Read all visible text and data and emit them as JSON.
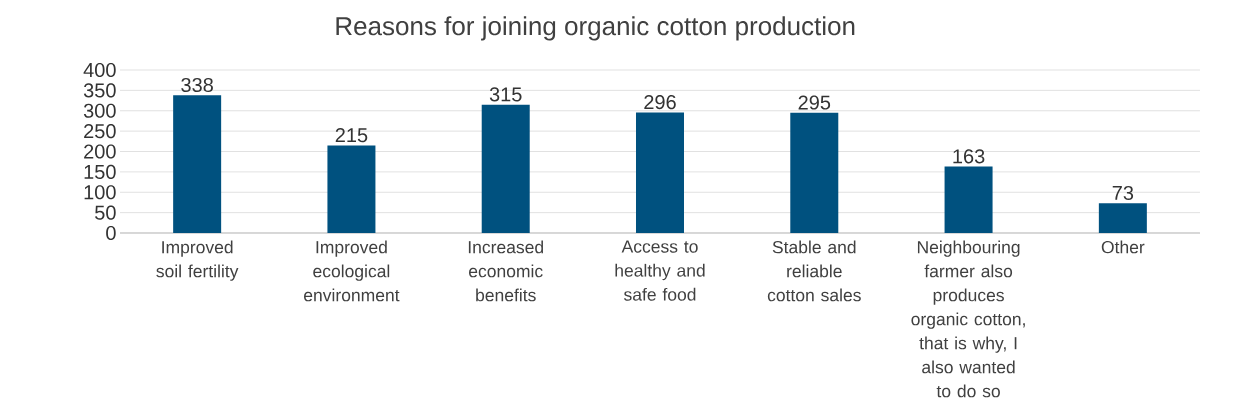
{
  "chart_data": {
    "type": "bar",
    "title": "Reasons for joining organic cotton production",
    "categories": [
      "Improved soil fertility",
      "Improved ecological environment",
      "Increased economic benefits",
      "Access to healthy and safe food",
      "Stable and reliable cotton sales",
      "Neighbouring farmer also produces organic cotton, that is why, I also wanted to do so",
      "Other"
    ],
    "values": [
      338,
      215,
      315,
      296,
      295,
      163,
      73
    ],
    "color": "#00517f",
    "ylim": [
      0,
      400
    ],
    "yticks": [
      0,
      50,
      100,
      150,
      200,
      250,
      300,
      350,
      400
    ],
    "grid": "y",
    "data_labels": true
  }
}
